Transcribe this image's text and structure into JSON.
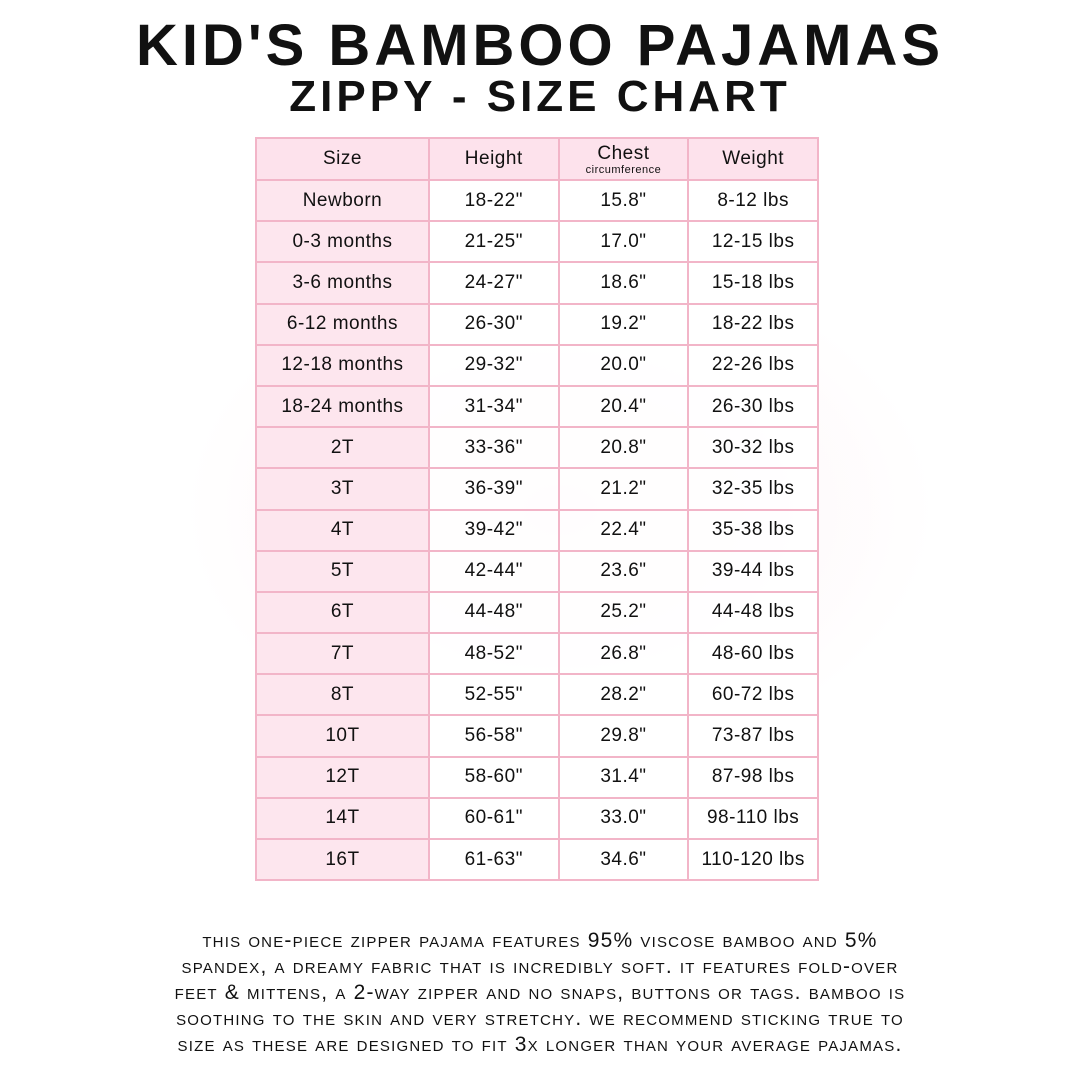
{
  "title": "Kid's Bamboo Pajamas",
  "subtitle": "Zippy - Size Chart",
  "table": {
    "headers": [
      "Size",
      "Height",
      "Chest",
      "Weight"
    ],
    "chest_sub": "circumference",
    "rows": [
      [
        "Newborn",
        "18-22\"",
        "15.8\"",
        "8-12 lbs"
      ],
      [
        "0-3 months",
        "21-25\"",
        "17.0\"",
        "12-15 lbs"
      ],
      [
        "3-6 months",
        "24-27\"",
        "18.6\"",
        "15-18 lbs"
      ],
      [
        "6-12 months",
        "26-30\"",
        "19.2\"",
        "18-22 lbs"
      ],
      [
        "12-18 months",
        "29-32\"",
        "20.0\"",
        "22-26 lbs"
      ],
      [
        "18-24 months",
        "31-34\"",
        "20.4\"",
        "26-30 lbs"
      ],
      [
        "2T",
        "33-36\"",
        "20.8\"",
        "30-32 lbs"
      ],
      [
        "3T",
        "36-39\"",
        "21.2\"",
        "32-35 lbs"
      ],
      [
        "4T",
        "39-42\"",
        "22.4\"",
        "35-38 lbs"
      ],
      [
        "5T",
        "42-44\"",
        "23.6\"",
        "39-44 lbs"
      ],
      [
        "6T",
        "44-48\"",
        "25.2\"",
        "44-48 lbs"
      ],
      [
        "7T",
        "48-52\"",
        "26.8\"",
        "48-60 lbs"
      ],
      [
        "8T",
        "52-55\"",
        "28.2\"",
        "60-72 lbs"
      ],
      [
        "10T",
        "56-58\"",
        "29.8\"",
        "73-87 lbs"
      ],
      [
        "12T",
        "58-60\"",
        "31.4\"",
        "87-98 lbs"
      ],
      [
        "14T",
        "60-61\"",
        "33.0\"",
        "98-110 lbs"
      ],
      [
        "16T",
        "61-63\"",
        "34.6\"",
        "110-120 lbs"
      ]
    ]
  },
  "description_lines": [
    "This one-piece zipper pajama features 95% viscose bamboo and 5%",
    "spandex, a dreamy fabric that is incredibly soft. It features fold-over",
    "feet & mittens, a 2-way zipper and no snaps, buttons or tags. Bamboo is",
    "soothing to the skin and very stretchy. We recommend sticking true to",
    "size as these are designed to fit 3x longer than your average pajamas."
  ],
  "colors": {
    "border": "#f2b5c8",
    "pink_fill": "#fde2ec",
    "text": "#111111"
  }
}
